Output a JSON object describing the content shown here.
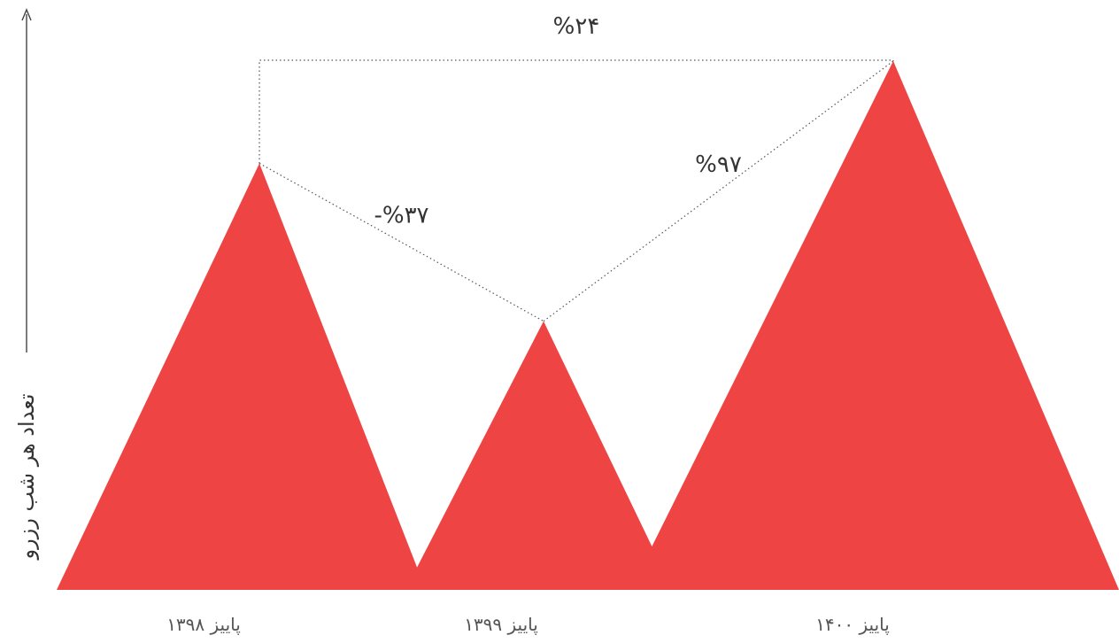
{
  "chart_data": {
    "type": "area",
    "ylabel": "تعداد هر شب رزرو",
    "categories": [
      "پاییز ۱۳۹۸",
      "پاییز ۱۳۹۹",
      "پاییز ۱۴۰۰"
    ],
    "values": [
      100,
      63,
      124
    ],
    "changes": [
      {
        "from": 0,
        "to": 1,
        "label": "-%۳۷"
      },
      {
        "from": 1,
        "to": 2,
        "label": "%۹۷"
      },
      {
        "from": 0,
        "to": 2,
        "label": "%۲۴"
      }
    ],
    "colors": {
      "fill": "#EE4444",
      "guide": "#555555",
      "text": "#333333"
    },
    "ylim": [
      0,
      130
    ]
  }
}
